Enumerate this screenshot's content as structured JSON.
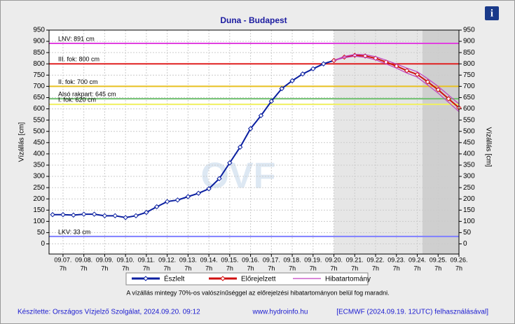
{
  "chart_data": {
    "type": "line",
    "title": "Duna - Budapest",
    "ylabel": "Vízállás [cm]",
    "y2label": "Vízállás [cm]",
    "watermark": "OVF",
    "xlim": [
      -0.67,
      19
    ],
    "ylim": [
      -45,
      950
    ],
    "yticks": [
      0,
      50,
      100,
      150,
      200,
      250,
      300,
      350,
      400,
      450,
      500,
      550,
      600,
      650,
      700,
      750,
      800,
      850,
      900,
      950
    ],
    "xticks": [
      {
        "value": 0,
        "label": "09.07.",
        "sublabel": "7h"
      },
      {
        "value": 1,
        "label": "09.08.",
        "sublabel": "7h"
      },
      {
        "value": 2,
        "label": "09.09.",
        "sublabel": "7h"
      },
      {
        "value": 3,
        "label": "09.10.",
        "sublabel": "7h"
      },
      {
        "value": 4,
        "label": "09.11.",
        "sublabel": "7h"
      },
      {
        "value": 5,
        "label": "09.12.",
        "sublabel": "7h"
      },
      {
        "value": 6,
        "label": "09.13.",
        "sublabel": "7h"
      },
      {
        "value": 7,
        "label": "09.14.",
        "sublabel": "7h"
      },
      {
        "value": 8,
        "label": "09.15.",
        "sublabel": "7h"
      },
      {
        "value": 9,
        "label": "09.16.",
        "sublabel": "7h"
      },
      {
        "value": 10,
        "label": "09.17.",
        "sublabel": "7h"
      },
      {
        "value": 11,
        "label": "09.18.",
        "sublabel": "7h"
      },
      {
        "value": 12,
        "label": "09.19.",
        "sublabel": "7h"
      },
      {
        "value": 13,
        "label": "09.20.",
        "sublabel": "7h"
      },
      {
        "value": 14,
        "label": "09.21.",
        "sublabel": "7h"
      },
      {
        "value": 15,
        "label": "09.22.",
        "sublabel": "7h"
      },
      {
        "value": 16,
        "label": "09.23.",
        "sublabel": "7h"
      },
      {
        "value": 17,
        "label": "09.24.",
        "sublabel": "7h"
      },
      {
        "value": 18,
        "label": "09.25.",
        "sublabel": "7h"
      },
      {
        "value": 19,
        "label": "09.26.",
        "sublabel": "7h"
      }
    ],
    "grid": true,
    "shaded": [
      {
        "from": 13,
        "to": 19,
        "color": "#e6e6e6"
      },
      {
        "from": 17.25,
        "to": 19,
        "color": "#cfcfcf"
      }
    ],
    "levels": [
      {
        "label": "LNV: 891 cm",
        "value": 891,
        "color": "#e040e0"
      },
      {
        "label": "III. fok: 800 cm",
        "value": 800,
        "color": "#e02020"
      },
      {
        "label": "II. fok: 700 cm",
        "value": 700,
        "color": "#e8c020"
      },
      {
        "label": "Alsó rakpart: 645 cm",
        "value": 645,
        "color": "#70c070"
      },
      {
        "label": "I. fok: 620 cm",
        "value": 620,
        "color": "#f0f060"
      },
      {
        "label": "LKV: 33 cm",
        "value": 33,
        "color": "#8080ff"
      }
    ],
    "series": [
      {
        "name": "Észlelt",
        "color": "#0a1fa0",
        "x": [
          -0.5,
          0,
          0.5,
          1,
          1.5,
          2,
          2.5,
          3,
          3.5,
          4,
          4.5,
          5,
          5.5,
          6,
          6.5,
          7,
          7.5,
          8,
          8.5,
          9,
          9.5,
          10,
          10.5,
          11,
          11.5,
          12,
          12.5,
          13
        ],
        "values": [
          130,
          130,
          128,
          132,
          132,
          125,
          125,
          117,
          125,
          140,
          165,
          188,
          195,
          210,
          225,
          245,
          290,
          360,
          430,
          512,
          570,
          634,
          690,
          725,
          755,
          778,
          800,
          815
        ]
      },
      {
        "name": "Előrejelzett",
        "color": "#d01010",
        "x": [
          13,
          13.5,
          14,
          14.5,
          15,
          15.5,
          16,
          16.5,
          17,
          17.5,
          18,
          18.5,
          19
        ],
        "values": [
          815,
          830,
          838,
          835,
          825,
          808,
          790,
          770,
          753,
          720,
          685,
          645,
          605
        ]
      },
      {
        "name": "Hibatartomány",
        "color": "#c040c0",
        "x": [
          13,
          13.5,
          14,
          14.5,
          15,
          15.5,
          16,
          16.5,
          17,
          17.5,
          18,
          18.5,
          19
        ],
        "upper": [
          815,
          833,
          842,
          841,
          832,
          816,
          799,
          781,
          765,
          734,
          700,
          661,
          622
        ],
        "lower": [
          815,
          827,
          834,
          829,
          818,
          800,
          781,
          759,
          741,
          706,
          670,
          629,
          588
        ]
      }
    ],
    "note": "A vízállás mintegy 70%-os valószínűséggel az előrejelzési hibatartományon belül fog maradni.",
    "footer": [
      "Készítette: Országos Vízjelző Szolgálat, 2024.09.20. 09:12",
      "www.hydroinfo.hu",
      "[ECMWF (2024.09.19. 12UTC) felhasználásával]"
    ],
    "info": "i"
  }
}
